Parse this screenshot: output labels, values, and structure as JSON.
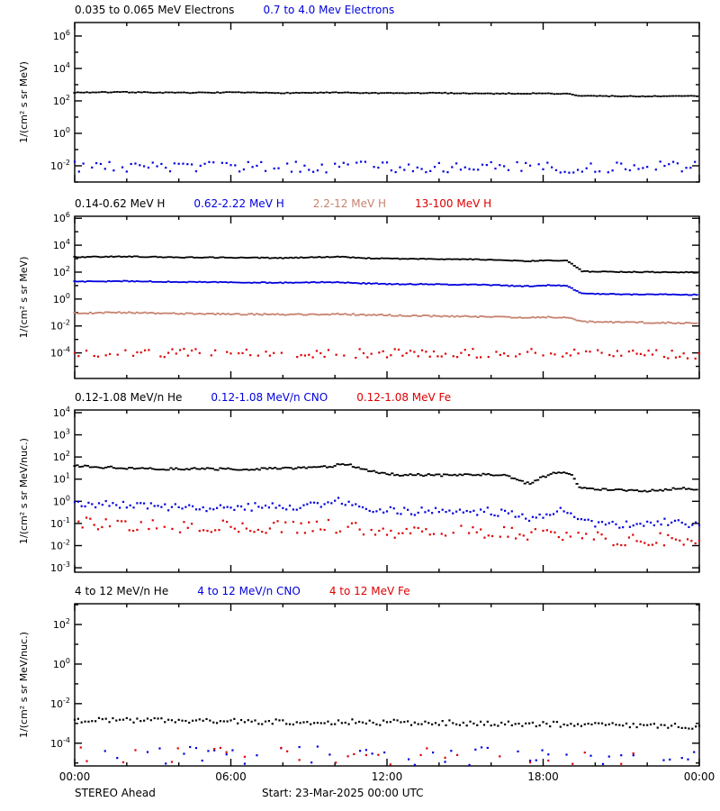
{
  "window": {
    "background": "#ffffff"
  },
  "colors": {
    "black": "#000000",
    "blue": "#0000DD",
    "tan": "#C6826E",
    "red": "#DD0000"
  },
  "footer": {
    "spacecraft": "STEREO Ahead",
    "start_label": "Start: 23-Mar-2025 00:00 UTC"
  },
  "x_axis": {
    "hours_total": 24,
    "minor_tick_hours": 2,
    "major_tick_hours": 6,
    "tick_hours": [
      0,
      6,
      12,
      18,
      24
    ],
    "tick_labels": [
      "00:00",
      "06:00",
      "12:00",
      "18:00",
      "00:00"
    ]
  },
  "chart_data": [
    {
      "type": "scatter",
      "panel": "electrons",
      "ylabel": "1/(cm² s sr MeV)",
      "ylim_exp": [
        -3.0,
        6.83
      ],
      "ytick_labeled_exps": [
        6,
        4,
        2,
        0,
        -2
      ],
      "series": [
        {
          "name": "0.035 to 0.065 MeV Electrons",
          "color": "black",
          "marker": "dash",
          "cadence_min": 7,
          "jitter_dex": 0.025,
          "gap_frac": 0,
          "trend": [
            [
              0,
              2.52
            ],
            [
              2,
              2.54
            ],
            [
              4,
              2.5
            ],
            [
              6,
              2.52
            ],
            [
              8,
              2.49
            ],
            [
              10,
              2.51
            ],
            [
              12,
              2.47
            ],
            [
              14,
              2.49
            ],
            [
              16,
              2.45
            ],
            [
              18,
              2.46
            ],
            [
              19.0,
              2.43
            ],
            [
              19.3,
              2.32
            ],
            [
              20,
              2.3
            ],
            [
              22,
              2.28
            ],
            [
              24,
              2.3
            ]
          ]
        },
        {
          "name": "0.7 to 4.0 Mev Electrons",
          "color": "blue",
          "marker": "dot",
          "cadence_min": 10,
          "jitter_dex": 0.34,
          "gap_frac": 0.08,
          "trend": [
            [
              0,
              -2.05
            ],
            [
              6,
              -2.1
            ],
            [
              12,
              -2.05
            ],
            [
              18,
              -2.1
            ],
            [
              24,
              -2.05
            ]
          ]
        }
      ]
    },
    {
      "type": "scatter",
      "panel": "protons",
      "ylabel": "1/(cm² s sr MeV)",
      "ylim_exp": [
        -5.9,
        6.15
      ],
      "ytick_labeled_exps": [
        6,
        4,
        2,
        0,
        -2,
        -4
      ],
      "series": [
        {
          "name": "0.14-0.62 MeV H",
          "color": "black",
          "marker": "dash",
          "cadence_min": 6,
          "jitter_dex": 0.03,
          "gap_frac": 0,
          "trend": [
            [
              0,
              3.12
            ],
            [
              2,
              3.16
            ],
            [
              4,
              3.1
            ],
            [
              6,
              3.08
            ],
            [
              8,
              3.05
            ],
            [
              9.5,
              3.12
            ],
            [
              10.2,
              3.14
            ],
            [
              11,
              3.04
            ],
            [
              12,
              3.0
            ],
            [
              14,
              2.97
            ],
            [
              15.5,
              2.95
            ],
            [
              16.6,
              2.88
            ],
            [
              17.3,
              2.8
            ],
            [
              18.1,
              2.88
            ],
            [
              18.9,
              2.86
            ],
            [
              19.15,
              2.55
            ],
            [
              19.5,
              2.05
            ],
            [
              21,
              2.02
            ],
            [
              24,
              1.98
            ]
          ]
        },
        {
          "name": "0.62-2.22 MeV H",
          "color": "blue",
          "marker": "dash",
          "cadence_min": 6,
          "jitter_dex": 0.035,
          "gap_frac": 0,
          "trend": [
            [
              0,
              1.3
            ],
            [
              2,
              1.33
            ],
            [
              4,
              1.27
            ],
            [
              6,
              1.24
            ],
            [
              8,
              1.21
            ],
            [
              9.8,
              1.26
            ],
            [
              11,
              1.17
            ],
            [
              12,
              1.12
            ],
            [
              14,
              1.09
            ],
            [
              16,
              1.04
            ],
            [
              17.3,
              0.95
            ],
            [
              18.2,
              1.02
            ],
            [
              18.9,
              0.98
            ],
            [
              19.15,
              0.75
            ],
            [
              19.5,
              0.4
            ],
            [
              21,
              0.36
            ],
            [
              24,
              0.32
            ]
          ]
        },
        {
          "name": "2.2-12 MeV H",
          "color": "tan",
          "marker": "dash",
          "cadence_min": 6,
          "jitter_dex": 0.05,
          "gap_frac": 0,
          "trend": [
            [
              0,
              -1.05
            ],
            [
              2,
              -1.0
            ],
            [
              4,
              -1.07
            ],
            [
              6,
              -1.12
            ],
            [
              8,
              -1.15
            ],
            [
              10,
              -1.12
            ],
            [
              12,
              -1.2
            ],
            [
              14,
              -1.27
            ],
            [
              16,
              -1.32
            ],
            [
              17.3,
              -1.42
            ],
            [
              18.2,
              -1.33
            ],
            [
              19.1,
              -1.42
            ],
            [
              19.5,
              -1.68
            ],
            [
              21,
              -1.72
            ],
            [
              24,
              -1.8
            ]
          ]
        },
        {
          "name": "13-100 MeV H",
          "color": "red",
          "marker": "dot",
          "cadence_min": 9,
          "jitter_dex": 0.33,
          "gap_frac": 0.22,
          "trend": [
            [
              0,
              -3.95
            ],
            [
              6,
              -4.0
            ],
            [
              12,
              -4.05
            ],
            [
              18,
              -4.02
            ],
            [
              24,
              -4.1
            ]
          ]
        }
      ]
    },
    {
      "type": "scatter",
      "panel": "heavy-ions-low",
      "ylabel": "1/(cm² s sr MeV/nuc.)",
      "ylim_exp": [
        -3.2,
        4.12
      ],
      "ytick_labeled_exps": [
        4,
        3,
        2,
        1,
        0,
        -1,
        -2,
        -3
      ],
      "series": [
        {
          "name": "0.12-1.08 MeV/n He",
          "color": "black",
          "marker": "dash",
          "cadence_min": 6,
          "jitter_dex": 0.05,
          "gap_frac": 0,
          "trend": [
            [
              0,
              1.6
            ],
            [
              1,
              1.54
            ],
            [
              2,
              1.5
            ],
            [
              3,
              1.47
            ],
            [
              4,
              1.45
            ],
            [
              5,
              1.47
            ],
            [
              6,
              1.44
            ],
            [
              7,
              1.45
            ],
            [
              8,
              1.48
            ],
            [
              9,
              1.51
            ],
            [
              9.8,
              1.56
            ],
            [
              10.3,
              1.72
            ],
            [
              10.7,
              1.6
            ],
            [
              11.2,
              1.42
            ],
            [
              11.8,
              1.28
            ],
            [
              12.3,
              1.2
            ],
            [
              13,
              1.2
            ],
            [
              14,
              1.18
            ],
            [
              15,
              1.21
            ],
            [
              16,
              1.22
            ],
            [
              16.6,
              1.15
            ],
            [
              17.1,
              0.92
            ],
            [
              17.45,
              0.8
            ],
            [
              17.9,
              1.06
            ],
            [
              18.4,
              1.26
            ],
            [
              18.9,
              1.28
            ],
            [
              19.15,
              1.15
            ],
            [
              19.35,
              0.62
            ],
            [
              20,
              0.56
            ],
            [
              21,
              0.5
            ],
            [
              22,
              0.47
            ],
            [
              23,
              0.55
            ],
            [
              23.4,
              0.62
            ],
            [
              24,
              0.48
            ]
          ]
        },
        {
          "name": "0.12-1.08 MeV/n CNO",
          "color": "blue",
          "marker": "dot",
          "cadence_min": 8,
          "jitter_dex": 0.18,
          "gap_frac": 0,
          "trend": [
            [
              0,
              -0.12
            ],
            [
              2,
              -0.2
            ],
            [
              4,
              -0.25
            ],
            [
              6,
              -0.27
            ],
            [
              8,
              -0.24
            ],
            [
              9.8,
              -0.12
            ],
            [
              10.3,
              0.05
            ],
            [
              11.2,
              -0.3
            ],
            [
              12.3,
              -0.45
            ],
            [
              14,
              -0.47
            ],
            [
              16,
              -0.44
            ],
            [
              17.1,
              -0.68
            ],
            [
              17.45,
              -0.8
            ],
            [
              18.4,
              -0.45
            ],
            [
              19.0,
              -0.42
            ],
            [
              19.35,
              -0.88
            ],
            [
              20,
              -0.98
            ],
            [
              21,
              -1.05
            ],
            [
              22,
              -1.0
            ],
            [
              23,
              -0.95
            ],
            [
              24,
              -1.05
            ]
          ]
        },
        {
          "name": "0.12-1.08 MeV Fe",
          "color": "red",
          "marker": "dot",
          "cadence_min": 9,
          "jitter_dex": 0.3,
          "gap_frac": 0.12,
          "trend": [
            [
              0,
              -0.95
            ],
            [
              2,
              -1.03
            ],
            [
              4,
              -1.1
            ],
            [
              6,
              -1.14
            ],
            [
              8,
              -1.18
            ],
            [
              10,
              -1.12
            ],
            [
              11.2,
              -1.3
            ],
            [
              12.3,
              -1.45
            ],
            [
              14,
              -1.4
            ],
            [
              16,
              -1.35
            ],
            [
              17.45,
              -1.55
            ],
            [
              18.4,
              -1.35
            ],
            [
              19.35,
              -1.62
            ],
            [
              21,
              -1.7
            ],
            [
              23,
              -1.73
            ],
            [
              24,
              -1.68
            ]
          ]
        }
      ]
    },
    {
      "type": "scatter",
      "panel": "heavy-ions-high",
      "ylabel": "1/(cm² s sr MeV/nuc.)",
      "ylim_exp": [
        -5.15,
        3.05
      ],
      "ytick_labeled_exps": [
        2,
        0,
        -2,
        -4
      ],
      "series": [
        {
          "name": "4 to 12 MeV/n He",
          "color": "black",
          "marker": "dot",
          "cadence_min": 8,
          "jitter_dex": 0.14,
          "gap_frac": 0,
          "trend": [
            [
              0,
              -2.82
            ],
            [
              2,
              -2.85
            ],
            [
              4,
              -2.88
            ],
            [
              6,
              -2.9
            ],
            [
              8,
              -2.92
            ],
            [
              10,
              -2.92
            ],
            [
              12,
              -2.95
            ],
            [
              14,
              -2.97
            ],
            [
              16,
              -3.0
            ],
            [
              18,
              -3.02
            ],
            [
              20,
              -3.06
            ],
            [
              22,
              -3.1
            ],
            [
              24,
              -3.16
            ]
          ]
        },
        {
          "name": "4 to 12 MeV/n CNO",
          "color": "blue",
          "marker": "dot",
          "cadence_min": 14,
          "jitter_dex": 0.5,
          "gap_frac": 0.5,
          "trend": [
            [
              0,
              -4.6
            ],
            [
              6,
              -4.65
            ],
            [
              12,
              -4.65
            ],
            [
              18,
              -4.7
            ],
            [
              24,
              -4.75
            ]
          ]
        },
        {
          "name": "4 to 12 MeV Fe",
          "color": "red",
          "marker": "dot",
          "cadence_min": 14,
          "jitter_dex": 0.45,
          "gap_frac": 0.72,
          "trend": [
            [
              0,
              -4.65
            ],
            [
              12,
              -4.7
            ],
            [
              24,
              -4.75
            ]
          ]
        }
      ]
    }
  ]
}
